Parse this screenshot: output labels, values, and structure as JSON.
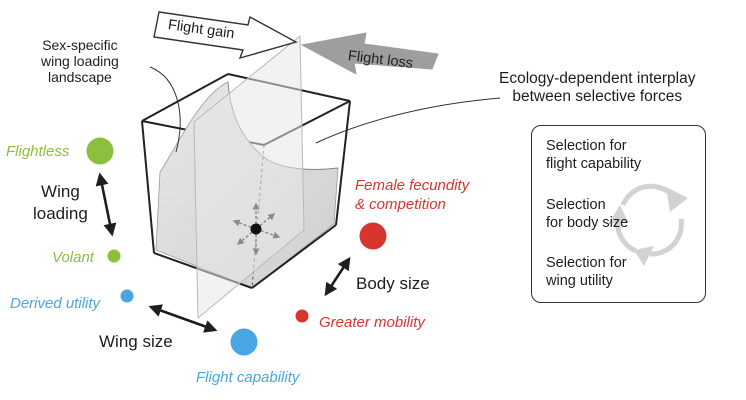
{
  "landscape_label": "Sex-specific\nwing loading\nlandscape",
  "ecology_label": "Ecology-dependent interplay\nbetween selective forces",
  "flight_gain": "Flight gain",
  "flight_loss": "Flight loss",
  "wing_loading_axis": {
    "label": "Wing\nloading",
    "top": "Flightless",
    "bottom": "Volant"
  },
  "body_size_axis": {
    "label": "Body size",
    "top": "Female fecundity\n& competition",
    "bottom": "Greater mobility"
  },
  "wing_size_axis": {
    "label": "Wing size",
    "left": "Derived utility",
    "right": "Flight capability"
  },
  "selection_panel": [
    "Selection for\nflight capability",
    "Selection\nfor body size",
    "Selection for\nwing utility"
  ],
  "colors": {
    "green": "#8dbf3e",
    "red": "#d7352d",
    "blue": "#4aa6e2"
  }
}
